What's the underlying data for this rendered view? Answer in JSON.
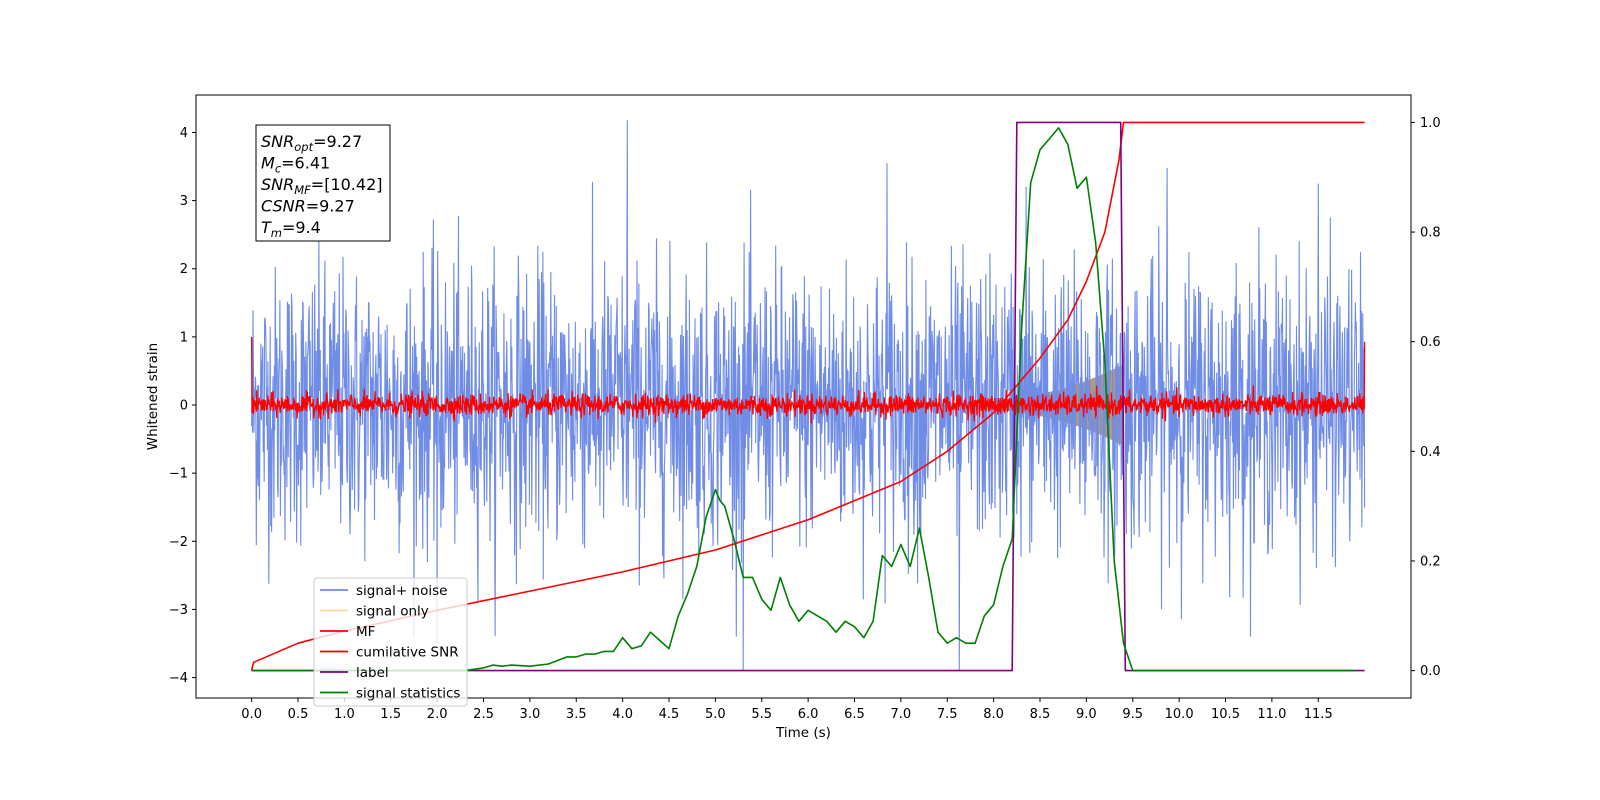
{
  "chart_data": {
    "type": "line",
    "xlabel": "Time (s)",
    "ylabel": "Whitened strain",
    "xlim": [
      -0.6,
      12.5
    ],
    "ylim": [
      -4.3,
      4.55
    ],
    "ylim_right": [
      -0.05,
      1.05
    ],
    "xticks": [
      0.0,
      0.5,
      1.0,
      1.5,
      2.0,
      2.5,
      3.0,
      3.5,
      4.0,
      4.5,
      5.0,
      5.5,
      6.0,
      6.5,
      7.0,
      7.5,
      8.0,
      8.5,
      9.0,
      9.5,
      10.0,
      10.5,
      11.0,
      11.5
    ],
    "xtick_labels": [
      "0.0",
      "0.5",
      "1.0",
      "1.5",
      "2.0",
      "2.5",
      "3.0",
      "3.5",
      "4.0",
      "4.5",
      "5.0",
      "5.5",
      "6.0",
      "6.5",
      "7.0",
      "7.5",
      "8.0",
      "8.5",
      "9.0",
      "9.5",
      "10.0",
      "10.5",
      "11.0",
      "11.5"
    ],
    "yticks": [
      -4,
      -3,
      -2,
      -1,
      0,
      1,
      2,
      3,
      4
    ],
    "ytick_labels": [
      "−4",
      "−3",
      "−2",
      "−1",
      "0",
      "1",
      "2",
      "3",
      "4"
    ],
    "yticks_right": [
      0.0,
      0.2,
      0.4,
      0.6,
      0.8,
      1.0
    ],
    "ytick_labels_right": [
      "0.0",
      "0.2",
      "0.4",
      "0.6",
      "0.8",
      "1.0"
    ],
    "legend_position": "lower-left",
    "grid": false,
    "annotation_box": {
      "lines": [
        {
          "var": "SNR",
          "sub": "opt",
          "value": "=9.27"
        },
        {
          "var": "M",
          "sub": "c",
          "value": "=6.41"
        },
        {
          "var": "SNR",
          "sub": "MF",
          "value": "=[10.42]"
        },
        {
          "var": "CSNR",
          "sub": "",
          "value": "=9.27"
        },
        {
          "var": "T",
          "sub": "m",
          "value": "=9.4"
        }
      ]
    },
    "series": [
      {
        "name": "signal+ noise",
        "color": "#6f8ce6",
        "axis": "left",
        "kind": "noise",
        "x_range": [
          0.0,
          12.0
        ],
        "envelope": 1.0,
        "spikes": [
          [
            4.05,
            4.18
          ],
          [
            5.3,
            -3.9
          ],
          [
            7.63,
            -3.9
          ],
          [
            6.85,
            3.55
          ],
          [
            9.87,
            3.48
          ],
          [
            2.0,
            -3.5
          ],
          [
            8.35,
            3.2
          ],
          [
            11.5,
            3.25
          ]
        ]
      },
      {
        "name": "signal only",
        "color": "#ffcc80",
        "axis": "left",
        "kind": "chirp",
        "x_range": [
          7.0,
          9.4
        ],
        "amplitude_start": 0.02,
        "amplitude_end": 0.6,
        "fill_color": "#b5997a"
      },
      {
        "name": "MF",
        "color": "#ff0000",
        "axis": "left",
        "kind": "noise-small",
        "x_range": [
          0.0,
          12.0
        ],
        "envelope": 0.08,
        "edge_values": [
          1.0,
          0.93
        ]
      },
      {
        "name": "cumilative SNR",
        "color": "#ff0000",
        "axis": "right",
        "x": [
          0.0,
          0.02,
          0.5,
          1.0,
          2.0,
          3.0,
          4.0,
          5.0,
          6.0,
          7.0,
          7.5,
          8.0,
          8.5,
          8.8,
          9.0,
          9.2,
          9.35,
          9.4,
          10.0,
          11.0,
          12.0
        ],
        "y": [
          0.0,
          0.015,
          0.05,
          0.072,
          0.11,
          0.145,
          0.18,
          0.22,
          0.275,
          0.345,
          0.4,
          0.47,
          0.57,
          0.64,
          0.71,
          0.8,
          0.93,
          1.0,
          1.0,
          1.0,
          1.0
        ]
      },
      {
        "name": "label",
        "color": "#800080",
        "axis": "right",
        "x": [
          0.0,
          8.2,
          8.25,
          9.37,
          9.42,
          12.0
        ],
        "y": [
          0.0,
          0.0,
          1.0,
          1.0,
          0.0,
          0.0
        ]
      },
      {
        "name": "signal statistics",
        "color": "#008000",
        "axis": "right",
        "x": [
          0.0,
          2.3,
          2.5,
          2.6,
          2.7,
          2.8,
          3.0,
          3.2,
          3.4,
          3.5,
          3.6,
          3.7,
          3.8,
          3.9,
          4.0,
          4.1,
          4.2,
          4.3,
          4.4,
          4.5,
          4.6,
          4.7,
          4.8,
          4.9,
          5.0,
          5.05,
          5.1,
          5.2,
          5.3,
          5.4,
          5.5,
          5.6,
          5.7,
          5.8,
          5.9,
          6.0,
          6.1,
          6.2,
          6.3,
          6.4,
          6.5,
          6.6,
          6.7,
          6.8,
          6.9,
          7.0,
          7.1,
          7.2,
          7.3,
          7.4,
          7.5,
          7.6,
          7.7,
          7.8,
          7.9,
          8.0,
          8.1,
          8.2,
          8.3,
          8.4,
          8.5,
          8.6,
          8.7,
          8.8,
          8.9,
          9.0,
          9.1,
          9.2,
          9.3,
          9.4,
          9.5,
          9.6,
          10.0,
          11.0,
          11.9
        ],
        "y": [
          0.0,
          0.0,
          0.005,
          0.01,
          0.008,
          0.01,
          0.008,
          0.012,
          0.025,
          0.025,
          0.03,
          0.03,
          0.035,
          0.035,
          0.06,
          0.04,
          0.045,
          0.07,
          0.055,
          0.04,
          0.1,
          0.14,
          0.19,
          0.28,
          0.33,
          0.31,
          0.3,
          0.24,
          0.17,
          0.17,
          0.13,
          0.11,
          0.17,
          0.12,
          0.09,
          0.11,
          0.1,
          0.09,
          0.07,
          0.09,
          0.08,
          0.06,
          0.09,
          0.21,
          0.19,
          0.23,
          0.19,
          0.26,
          0.17,
          0.07,
          0.05,
          0.06,
          0.05,
          0.05,
          0.1,
          0.12,
          0.19,
          0.24,
          0.62,
          0.89,
          0.95,
          0.97,
          0.99,
          0.96,
          0.88,
          0.9,
          0.78,
          0.56,
          0.2,
          0.05,
          0.0,
          0.0,
          0.0,
          0.0,
          0.0
        ]
      }
    ]
  }
}
